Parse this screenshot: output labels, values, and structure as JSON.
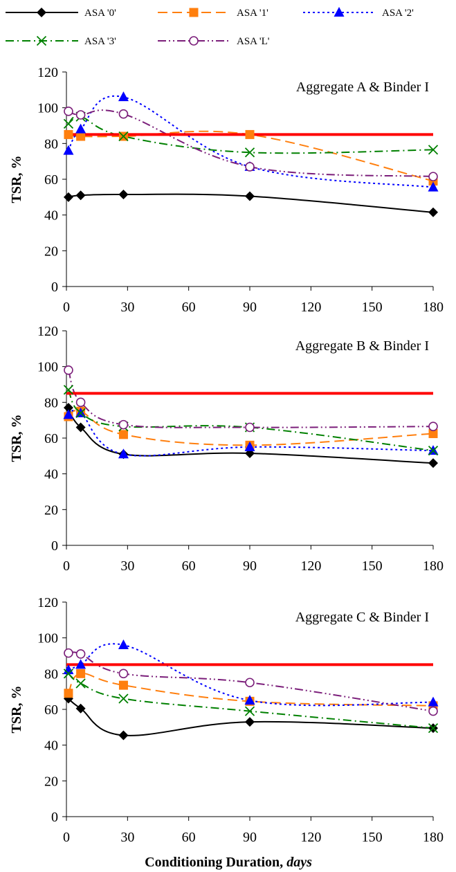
{
  "chart_data": [
    {
      "type": "line",
      "title": "Aggregate A & Binder I",
      "ylabel": "TSR, %",
      "ylim": [
        0,
        120
      ],
      "xlim": [
        0,
        180
      ],
      "yticks": [
        0,
        20,
        40,
        60,
        80,
        100,
        120
      ],
      "xticks": [
        0,
        30,
        60,
        90,
        120,
        150,
        180
      ],
      "threshold": 85,
      "x": [
        1,
        7,
        28,
        90,
        180
      ],
      "series": [
        {
          "name": "ASA '0'",
          "values": [
            50,
            51,
            51.5,
            50.5,
            41.5
          ]
        },
        {
          "name": "ASA '1'",
          "values": [
            85,
            84,
            84,
            85,
            59
          ]
        },
        {
          "name": "ASA '2'",
          "values": [
            76,
            88,
            106,
            67,
            55.5
          ]
        },
        {
          "name": "ASA '3'",
          "values": [
            91,
            95,
            84,
            75,
            76.5
          ]
        },
        {
          "name": "ASA 'L'",
          "values": [
            98,
            96,
            96.5,
            67,
            61.5
          ]
        }
      ]
    },
    {
      "type": "line",
      "title": "Aggregate B & Binder I",
      "ylabel": "TSR, %",
      "ylim": [
        0,
        120
      ],
      "xlim": [
        0,
        180
      ],
      "yticks": [
        0,
        20,
        40,
        60,
        80,
        100,
        120
      ],
      "xticks": [
        0,
        30,
        60,
        90,
        120,
        150,
        180
      ],
      "threshold": 85,
      "x": [
        1,
        7,
        28,
        90,
        180
      ],
      "series": [
        {
          "name": "ASA '0'",
          "values": [
            77,
            66,
            51,
            51.5,
            46
          ]
        },
        {
          "name": "ASA '1'",
          "values": [
            72,
            75,
            62,
            56,
            62.5
          ]
        },
        {
          "name": "ASA '2'",
          "values": [
            73,
            74,
            51,
            55,
            53
          ]
        },
        {
          "name": "ASA '3'",
          "values": [
            87,
            74,
            66.5,
            66,
            53
          ]
        },
        {
          "name": "ASA 'L'",
          "values": [
            98,
            80,
            67.5,
            66,
            66.5
          ]
        }
      ]
    },
    {
      "type": "line",
      "title": "Aggregate C & Binder I",
      "ylabel": "TSR, %",
      "xlabel": "Conditioning Duration, days",
      "ylim": [
        0,
        120
      ],
      "xlim": [
        0,
        180
      ],
      "yticks": [
        0,
        20,
        40,
        60,
        80,
        100,
        120
      ],
      "xticks": [
        0,
        30,
        60,
        90,
        120,
        150,
        180
      ],
      "threshold": 85,
      "x": [
        1,
        7,
        28,
        90,
        180
      ],
      "series": [
        {
          "name": "ASA '0'",
          "values": [
            66,
            60.5,
            45.5,
            53,
            49.5
          ]
        },
        {
          "name": "ASA '1'",
          "values": [
            69,
            80,
            73.5,
            64.5,
            62
          ]
        },
        {
          "name": "ASA '2'",
          "values": [
            82,
            85,
            96,
            65,
            64
          ]
        },
        {
          "name": "ASA '3'",
          "values": [
            80,
            74.5,
            66,
            59,
            49.5
          ]
        },
        {
          "name": "ASA 'L'",
          "values": [
            91.5,
            91,
            80,
            75,
            59
          ]
        }
      ]
    }
  ],
  "legend": [
    {
      "name": "ASA '0'",
      "color": "#000000",
      "marker": "diamond",
      "dash": "solid"
    },
    {
      "name": "ASA '1'",
      "color": "#FF7F0E",
      "marker": "square",
      "dash": "longdash"
    },
    {
      "name": "ASA '2'",
      "color": "#0000FF",
      "marker": "triangle",
      "dash": "dotted"
    },
    {
      "name": "ASA '3'",
      "color": "#008000",
      "marker": "x",
      "dash": "dashdot"
    },
    {
      "name": "ASA 'L'",
      "color": "#7B1E7A",
      "marker": "circle",
      "dash": "dashdotdot"
    }
  ],
  "threshold_color": "#FF0000",
  "xlabel_main": "Conditioning Duration, ",
  "xlabel_unit": "days"
}
